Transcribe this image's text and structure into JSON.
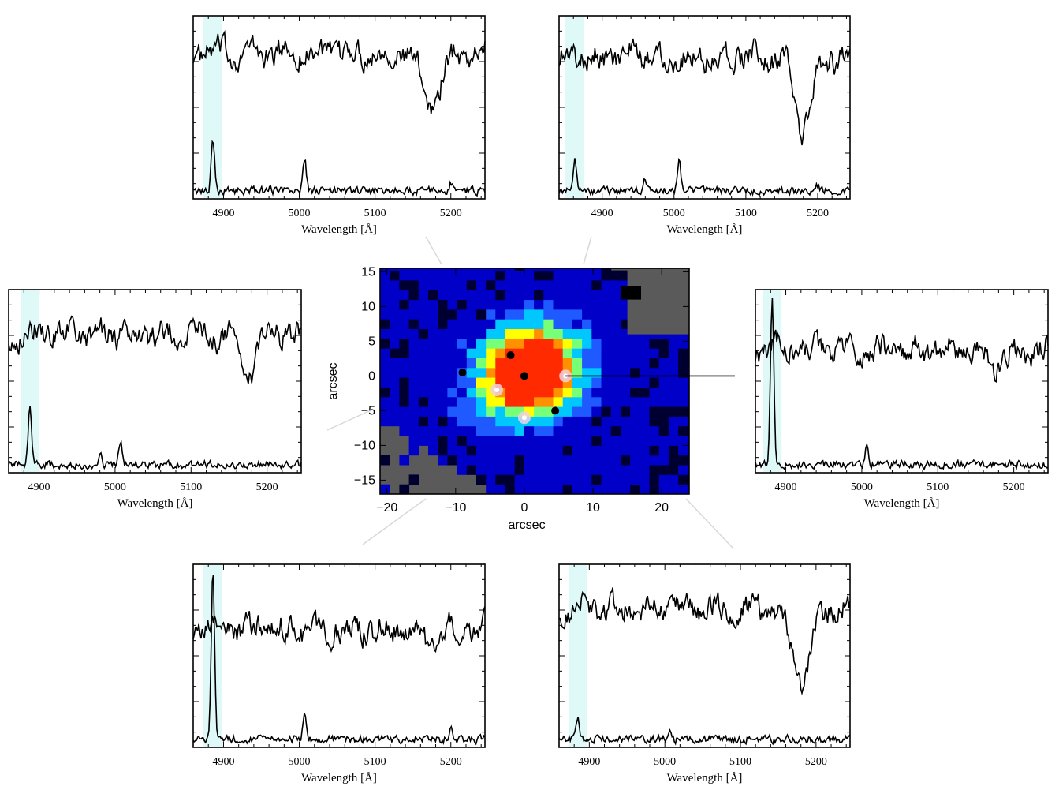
{
  "figure": {
    "map": {
      "xlabel": "arcsec",
      "ylabel": "arcsec",
      "xticks": [
        -20,
        -10,
        0,
        10,
        20
      ],
      "yticks": [
        -15,
        -10,
        -5,
        0,
        5,
        10,
        15
      ],
      "xlim": [
        -21,
        24
      ],
      "ylim": [
        -17,
        15.5
      ],
      "background_color": "#5a5a5a",
      "colormap": [
        "#000030",
        "#0000c8",
        "#1e5aff",
        "#00c8ff",
        "#78ff78",
        "#ffff00",
        "#ff9000",
        "#ff2a00"
      ],
      "pointer_line": {
        "from": [
          6,
          0
        ],
        "to_panel": "right"
      },
      "markers": [
        {
          "x": -2,
          "y": 3,
          "kind": "black"
        },
        {
          "x": 0,
          "y": 0,
          "kind": "black"
        },
        {
          "x": -9,
          "y": 0.5,
          "kind": "black"
        },
        {
          "x": 4.5,
          "y": -5,
          "kind": "black"
        },
        {
          "x": 6,
          "y": 0,
          "kind": "white"
        },
        {
          "x": -4,
          "y": -2,
          "kind": "white"
        },
        {
          "x": 0,
          "y": -6,
          "kind": "white"
        }
      ]
    },
    "panels": [
      {
        "id": "top-left",
        "xlabel": "Wavelength [Å]",
        "xticks": [
          4900,
          5000,
          5100,
          5200
        ],
        "xlim": [
          4860,
          5245
        ],
        "emission": [
          {
            "center": 4886,
            "height": 0.3
          },
          {
            "center": 5007,
            "height": 0.18
          },
          {
            "center": 4960,
            "height": 0.02
          },
          {
            "center": 5200,
            "height": 0.04
          }
        ],
        "absorption": [
          {
            "center": 5175,
            "depth": 0.28,
            "width": 12
          }
        ],
        "cont_level": 0.82,
        "highlight_color": "#7fe8e8"
      },
      {
        "id": "top-right",
        "xlabel": "Wavelength [Å]",
        "xticks": [
          4900,
          5000,
          5100,
          5200
        ],
        "xlim": [
          4840,
          5245
        ],
        "emission": [
          {
            "center": 4862,
            "height": 0.19
          },
          {
            "center": 4959,
            "height": 0.06
          },
          {
            "center": 5007,
            "height": 0.18
          },
          {
            "center": 5200,
            "height": 0.03
          }
        ],
        "absorption": [
          {
            "center": 5180,
            "depth": 0.42,
            "width": 12
          }
        ],
        "cont_level": 0.8,
        "highlight_color": "#7fe8e8"
      },
      {
        "id": "middle-left",
        "xlabel": "Wavelength [Å]",
        "xticks": [
          4900,
          5000,
          5100,
          5200
        ],
        "xlim": [
          4860,
          5245
        ],
        "emission": [
          {
            "center": 4888,
            "height": 0.33
          },
          {
            "center": 4980,
            "height": 0.06
          },
          {
            "center": 5007,
            "height": 0.14
          }
        ],
        "absorption": [
          {
            "center": 5175,
            "depth": 0.24,
            "width": 10
          }
        ],
        "cont_level": 0.78,
        "highlight_color": "#7fe8e8"
      },
      {
        "id": "middle-right",
        "xlabel": "Wavelength [Å]",
        "xticks": [
          4900,
          5000,
          5100,
          5200
        ],
        "xlim": [
          4860,
          5245
        ],
        "emission": [
          {
            "center": 4882,
            "height": 0.95
          },
          {
            "center": 5007,
            "height": 0.11
          }
        ],
        "absorption": [
          {
            "center": 5175,
            "depth": 0.08,
            "width": 10
          }
        ],
        "cont_level": 0.68,
        "highlight_color": "#7fe8e8"
      },
      {
        "id": "bottom-left",
        "xlabel": "Wavelength [Å]",
        "xticks": [
          4900,
          5000,
          5100,
          5200
        ],
        "xlim": [
          4860,
          5245
        ],
        "emission": [
          {
            "center": 4886,
            "height": 1.0
          },
          {
            "center": 5007,
            "height": 0.13
          },
          {
            "center": 4960,
            "height": 0.03
          },
          {
            "center": 5200,
            "height": 0.05
          }
        ],
        "absorption": [
          {
            "center": 5175,
            "depth": 0.1,
            "width": 10
          }
        ],
        "cont_level": 0.66,
        "highlight_color": "#7fe8e8"
      },
      {
        "id": "bottom-right",
        "xlabel": "Wavelength [Å]",
        "xticks": [
          4900,
          5000,
          5100,
          5200
        ],
        "xlim": [
          4860,
          5245
        ],
        "emission": [
          {
            "center": 4885,
            "height": 0.14
          },
          {
            "center": 5007,
            "height": 0.06
          }
        ],
        "absorption": [
          {
            "center": 5180,
            "depth": 0.42,
            "width": 12
          }
        ],
        "cont_level": 0.78,
        "highlight_color": "#7fe8e8"
      }
    ]
  },
  "chart_data": [
    {
      "type": "heatmap",
      "xlabel": "arcsec",
      "ylabel": "arcsec",
      "xlim": [
        -21,
        24
      ],
      "ylim": [
        -17,
        15.5
      ]
    },
    {
      "type": "line",
      "xlabel": "Wavelength [Å]",
      "xlim": [
        4860,
        5245
      ],
      "series": [
        {
          "values": []
        },
        {
          "values": []
        }
      ]
    },
    {
      "type": "line",
      "xlabel": "Wavelength [Å]",
      "xlim": [
        4840,
        5245
      ],
      "series": [
        {
          "values": []
        },
        {
          "values": []
        }
      ]
    },
    {
      "type": "line",
      "xlabel": "Wavelength [Å]",
      "xlim": [
        4860,
        5245
      ],
      "series": [
        {
          "values": []
        },
        {
          "values": []
        }
      ]
    },
    {
      "type": "line",
      "xlabel": "Wavelength [Å]",
      "xlim": [
        4860,
        5245
      ],
      "series": [
        {
          "values": []
        },
        {
          "values": []
        }
      ]
    },
    {
      "type": "line",
      "xlabel": "Wavelength [Å]",
      "xlim": [
        4860,
        5245
      ],
      "series": [
        {
          "values": []
        },
        {
          "values": []
        }
      ]
    },
    {
      "type": "line",
      "xlabel": "Wavelength [Å]",
      "xlim": [
        4860,
        5245
      ],
      "series": [
        {
          "values": []
        },
        {
          "values": []
        }
      ]
    }
  ]
}
